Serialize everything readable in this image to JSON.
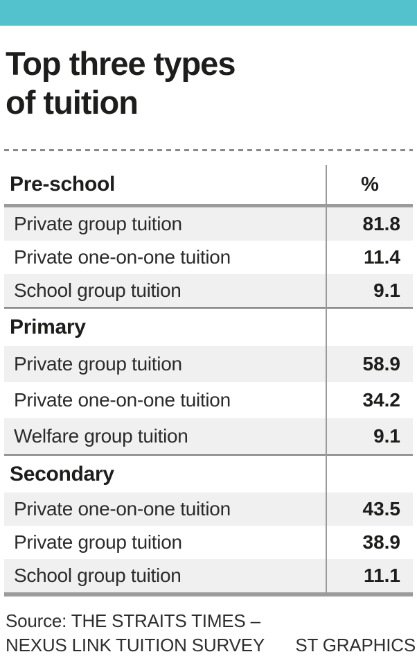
{
  "colors": {
    "accent": "#53c2cc",
    "ink": "#1d1d1b",
    "stripe": "#f0f0f0"
  },
  "title": {
    "line1": "Top three types",
    "line2": "of tuition"
  },
  "table": {
    "value_header": "%",
    "sections": [
      {
        "label": "Pre-school",
        "rows": [
          {
            "label": "Private group tuition",
            "value": "81.8"
          },
          {
            "label": "Private one-on-one tuition",
            "value": "11.4"
          },
          {
            "label": "School group tuition",
            "value": "9.1"
          }
        ]
      },
      {
        "label": "Primary",
        "rows": [
          {
            "label": "Private group tuition",
            "value": "58.9"
          },
          {
            "label": "Private one-on-one tuition",
            "value": "34.2"
          },
          {
            "label": "Welfare group tuition",
            "value": "9.1"
          }
        ]
      },
      {
        "label": "Secondary",
        "rows": [
          {
            "label": "Private one-on-one tuition",
            "value": "43.5"
          },
          {
            "label": "Private group tuition",
            "value": "38.9"
          },
          {
            "label": "School group tuition",
            "value": "11.1"
          }
        ]
      }
    ]
  },
  "footer": {
    "source_line1": "Source: THE STRAITS TIMES –",
    "source_line2": "NEXUS LINK TUITION SURVEY",
    "credit": "ST GRAPHICS"
  },
  "chart_data": {
    "type": "table",
    "title": "Top three types of tuition",
    "value_unit": "%",
    "sections": [
      {
        "category": "Pre-school",
        "rows": [
          [
            "Private group tuition",
            81.8
          ],
          [
            "Private one-on-one tuition",
            11.4
          ],
          [
            "School group tuition",
            9.1
          ]
        ]
      },
      {
        "category": "Primary",
        "rows": [
          [
            "Private group tuition",
            58.9
          ],
          [
            "Private one-on-one tuition",
            34.2
          ],
          [
            "Welfare group tuition",
            9.1
          ]
        ]
      },
      {
        "category": "Secondary",
        "rows": [
          [
            "Private one-on-one tuition",
            43.5
          ],
          [
            "Private group tuition",
            38.9
          ],
          [
            "School group tuition",
            11.1
          ]
        ]
      }
    ],
    "source": "THE STRAITS TIMES – NEXUS LINK TUITION SURVEY",
    "credit": "ST GRAPHICS"
  }
}
